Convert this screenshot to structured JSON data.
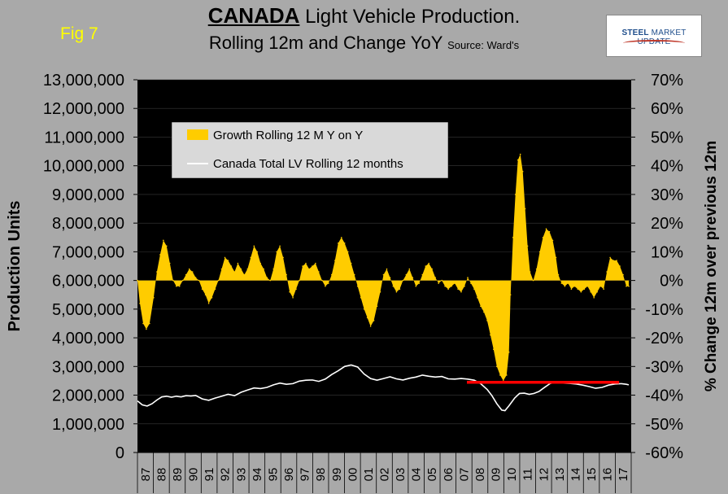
{
  "header": {
    "fig_label": "Fig 7",
    "title_bold": "CANADA",
    "title_rest": " Light Vehicle Production.",
    "subtitle": "Rolling 12m and Change YoY",
    "source": "Source: Ward's"
  },
  "logo": {
    "brand": "STEEL",
    "rest": "MARKET UPDATE"
  },
  "colors": {
    "growth": "#ffcc00",
    "total_line": "#ffffff",
    "reference_line": "#ff0000",
    "plot_bg": "#000000",
    "page_bg": "#a9a9a9"
  },
  "chart_data": {
    "type": "area",
    "xlabel": "",
    "ylabel_left": "Production Units",
    "ylabel_right": "% Change 12m over previous 12m",
    "y_left_lim": [
      0,
      13000000
    ],
    "y_left_ticks": [
      "0",
      "1,000,000",
      "2,000,000",
      "3,000,000",
      "4,000,000",
      "5,000,000",
      "6,000,000",
      "7,000,000",
      "8,000,000",
      "9,000,000",
      "10,000,000",
      "11,000,000",
      "12,000,000",
      "13,000,000"
    ],
    "y_right_lim": [
      -60,
      70
    ],
    "y_right_ticks": [
      "-60%",
      "-50%",
      "-40%",
      "-30%",
      "-20%",
      "-10%",
      "0%",
      "10%",
      "20%",
      "30%",
      "40%",
      "50%",
      "60%",
      "70%"
    ],
    "x_ticks": [
      "87",
      "88",
      "89",
      "90",
      "91",
      "92",
      "93",
      "94",
      "95",
      "96",
      "97",
      "98",
      "99",
      "00",
      "01",
      "02",
      "03",
      "04",
      "05",
      "06",
      "07",
      "08",
      "09",
      "10",
      "11",
      "12",
      "13",
      "14",
      "15",
      "16",
      "17"
    ],
    "x_range": [
      1987,
      2017.5
    ],
    "legend": {
      "placement": "top-left",
      "growth_label": "Growth Rolling 12 M Y on Y",
      "total_label": "Canada Total LV Rolling 12 months"
    },
    "series": [
      {
        "name": "Growth Rolling 12 M Y on Y",
        "axis": "right",
        "points": [
          [
            1987.0,
            0
          ],
          [
            1987.15,
            -8
          ],
          [
            1987.35,
            -15
          ],
          [
            1987.55,
            -17
          ],
          [
            1987.75,
            -15
          ],
          [
            1988.0,
            -6
          ],
          [
            1988.2,
            3
          ],
          [
            1988.4,
            9
          ],
          [
            1988.6,
            14
          ],
          [
            1988.8,
            12
          ],
          [
            1989.0,
            6
          ],
          [
            1989.2,
            0
          ],
          [
            1989.4,
            -2
          ],
          [
            1989.6,
            -2
          ],
          [
            1989.8,
            0
          ],
          [
            1990.0,
            2
          ],
          [
            1990.2,
            4
          ],
          [
            1990.4,
            3
          ],
          [
            1990.6,
            1
          ],
          [
            1990.8,
            0
          ],
          [
            1991.0,
            -3
          ],
          [
            1991.2,
            -5
          ],
          [
            1991.4,
            -8
          ],
          [
            1991.6,
            -6
          ],
          [
            1991.8,
            -3
          ],
          [
            1992.0,
            0
          ],
          [
            1992.2,
            4
          ],
          [
            1992.4,
            8
          ],
          [
            1992.6,
            7
          ],
          [
            1992.8,
            5
          ],
          [
            1993.0,
            3
          ],
          [
            1993.2,
            6
          ],
          [
            1993.4,
            4
          ],
          [
            1993.6,
            2
          ],
          [
            1993.8,
            4
          ],
          [
            1994.0,
            8
          ],
          [
            1994.2,
            12
          ],
          [
            1994.4,
            10
          ],
          [
            1994.6,
            6
          ],
          [
            1994.8,
            4
          ],
          [
            1995.0,
            1
          ],
          [
            1995.2,
            0
          ],
          [
            1995.4,
            4
          ],
          [
            1995.6,
            10
          ],
          [
            1995.8,
            12
          ],
          [
            1996.0,
            8
          ],
          [
            1996.2,
            2
          ],
          [
            1996.4,
            -4
          ],
          [
            1996.6,
            -6
          ],
          [
            1996.8,
            -3
          ],
          [
            1997.0,
            0
          ],
          [
            1997.2,
            5
          ],
          [
            1997.4,
            6
          ],
          [
            1997.6,
            4
          ],
          [
            1997.8,
            5
          ],
          [
            1998.0,
            6
          ],
          [
            1998.2,
            3
          ],
          [
            1998.4,
            0
          ],
          [
            1998.6,
            -2
          ],
          [
            1998.8,
            -1
          ],
          [
            1999.0,
            2
          ],
          [
            1999.2,
            7
          ],
          [
            1999.4,
            13
          ],
          [
            1999.6,
            15
          ],
          [
            1999.8,
            13
          ],
          [
            2000.0,
            10
          ],
          [
            2000.2,
            6
          ],
          [
            2000.4,
            2
          ],
          [
            2000.6,
            -2
          ],
          [
            2000.8,
            -6
          ],
          [
            2001.0,
            -10
          ],
          [
            2001.2,
            -13
          ],
          [
            2001.4,
            -16
          ],
          [
            2001.6,
            -14
          ],
          [
            2001.8,
            -9
          ],
          [
            2002.0,
            -4
          ],
          [
            2002.2,
            2
          ],
          [
            2002.4,
            4
          ],
          [
            2002.6,
            1
          ],
          [
            2002.8,
            -2
          ],
          [
            2003.0,
            -4
          ],
          [
            2003.2,
            -3
          ],
          [
            2003.4,
            0
          ],
          [
            2003.6,
            2
          ],
          [
            2003.8,
            4
          ],
          [
            2004.0,
            1
          ],
          [
            2004.2,
            -2
          ],
          [
            2004.4,
            -1
          ],
          [
            2004.6,
            2
          ],
          [
            2004.8,
            5
          ],
          [
            2005.0,
            6
          ],
          [
            2005.2,
            4
          ],
          [
            2005.4,
            1
          ],
          [
            2005.6,
            -1
          ],
          [
            2005.8,
            0
          ],
          [
            2006.0,
            -2
          ],
          [
            2006.2,
            -3
          ],
          [
            2006.4,
            -2
          ],
          [
            2006.6,
            -1
          ],
          [
            2006.8,
            -3
          ],
          [
            2007.0,
            -4
          ],
          [
            2007.2,
            -2
          ],
          [
            2007.4,
            1
          ],
          [
            2007.6,
            -1
          ],
          [
            2007.8,
            -3
          ],
          [
            2008.0,
            -6
          ],
          [
            2008.2,
            -9
          ],
          [
            2008.4,
            -11
          ],
          [
            2008.6,
            -14
          ],
          [
            2008.8,
            -19
          ],
          [
            2009.0,
            -24
          ],
          [
            2009.2,
            -30
          ],
          [
            2009.4,
            -33
          ],
          [
            2009.6,
            -35
          ],
          [
            2009.8,
            -33
          ],
          [
            2009.95,
            -25
          ],
          [
            2010.05,
            -5
          ],
          [
            2010.2,
            15
          ],
          [
            2010.35,
            30
          ],
          [
            2010.5,
            42
          ],
          [
            2010.65,
            44
          ],
          [
            2010.8,
            38
          ],
          [
            2010.95,
            25
          ],
          [
            2011.1,
            12
          ],
          [
            2011.25,
            3
          ],
          [
            2011.45,
            0
          ],
          [
            2011.65,
            4
          ],
          [
            2011.85,
            10
          ],
          [
            2012.05,
            15
          ],
          [
            2012.25,
            18
          ],
          [
            2012.45,
            17
          ],
          [
            2012.65,
            14
          ],
          [
            2012.85,
            8
          ],
          [
            2013.0,
            2
          ],
          [
            2013.2,
            -1
          ],
          [
            2013.4,
            -2
          ],
          [
            2013.6,
            -1
          ],
          [
            2013.8,
            -3
          ],
          [
            2014.0,
            -2
          ],
          [
            2014.2,
            -3
          ],
          [
            2014.4,
            -4
          ],
          [
            2014.6,
            -3
          ],
          [
            2014.8,
            -2
          ],
          [
            2015.0,
            -4
          ],
          [
            2015.2,
            -6
          ],
          [
            2015.4,
            -4
          ],
          [
            2015.6,
            -2
          ],
          [
            2015.8,
            -3
          ],
          [
            2016.0,
            3
          ],
          [
            2016.2,
            8
          ],
          [
            2016.4,
            7
          ],
          [
            2016.6,
            7
          ],
          [
            2016.8,
            5
          ],
          [
            2017.0,
            2
          ],
          [
            2017.2,
            -2
          ],
          [
            2017.35,
            -2
          ]
        ]
      },
      {
        "name": "Canada Total LV Rolling 12 months",
        "axis": "left",
        "points": [
          [
            1987.0,
            1800000
          ],
          [
            1987.3,
            1660000
          ],
          [
            1987.6,
            1620000
          ],
          [
            1987.9,
            1700000
          ],
          [
            1988.2,
            1830000
          ],
          [
            1988.5,
            1940000
          ],
          [
            1988.8,
            1960000
          ],
          [
            1989.1,
            1930000
          ],
          [
            1989.4,
            1960000
          ],
          [
            1989.7,
            1940000
          ],
          [
            1990.0,
            1980000
          ],
          [
            1990.3,
            1970000
          ],
          [
            1990.6,
            1990000
          ],
          [
            1991.0,
            1870000
          ],
          [
            1991.4,
            1820000
          ],
          [
            1991.8,
            1900000
          ],
          [
            1992.2,
            1960000
          ],
          [
            1992.6,
            2030000
          ],
          [
            1993.0,
            1980000
          ],
          [
            1993.4,
            2100000
          ],
          [
            1993.8,
            2180000
          ],
          [
            1994.2,
            2250000
          ],
          [
            1994.6,
            2230000
          ],
          [
            1995.0,
            2270000
          ],
          [
            1995.4,
            2360000
          ],
          [
            1995.8,
            2420000
          ],
          [
            1996.2,
            2380000
          ],
          [
            1996.6,
            2400000
          ],
          [
            1997.0,
            2490000
          ],
          [
            1997.4,
            2520000
          ],
          [
            1997.8,
            2530000
          ],
          [
            1998.2,
            2480000
          ],
          [
            1998.6,
            2560000
          ],
          [
            1999.0,
            2720000
          ],
          [
            1999.4,
            2850000
          ],
          [
            1999.8,
            3000000
          ],
          [
            2000.2,
            3050000
          ],
          [
            2000.6,
            2980000
          ],
          [
            2001.0,
            2740000
          ],
          [
            2001.4,
            2580000
          ],
          [
            2001.8,
            2520000
          ],
          [
            2002.2,
            2580000
          ],
          [
            2002.6,
            2640000
          ],
          [
            2003.0,
            2570000
          ],
          [
            2003.4,
            2530000
          ],
          [
            2003.8,
            2590000
          ],
          [
            2004.2,
            2630000
          ],
          [
            2004.6,
            2700000
          ],
          [
            2005.0,
            2660000
          ],
          [
            2005.4,
            2630000
          ],
          [
            2005.8,
            2650000
          ],
          [
            2006.2,
            2570000
          ],
          [
            2006.6,
            2560000
          ],
          [
            2007.0,
            2580000
          ],
          [
            2007.4,
            2560000
          ],
          [
            2007.8,
            2520000
          ],
          [
            2008.2,
            2400000
          ],
          [
            2008.6,
            2200000
          ],
          [
            2008.9,
            1980000
          ],
          [
            2009.2,
            1700000
          ],
          [
            2009.5,
            1480000
          ],
          [
            2009.7,
            1460000
          ],
          [
            2009.95,
            1630000
          ],
          [
            2010.3,
            1900000
          ],
          [
            2010.6,
            2060000
          ],
          [
            2010.9,
            2070000
          ],
          [
            2011.2,
            2030000
          ],
          [
            2011.5,
            2060000
          ],
          [
            2011.8,
            2130000
          ],
          [
            2012.1,
            2250000
          ],
          [
            2012.5,
            2410000
          ],
          [
            2012.9,
            2450000
          ],
          [
            2013.3,
            2420000
          ],
          [
            2013.7,
            2410000
          ],
          [
            2014.1,
            2390000
          ],
          [
            2014.5,
            2350000
          ],
          [
            2014.9,
            2300000
          ],
          [
            2015.3,
            2240000
          ],
          [
            2015.7,
            2270000
          ],
          [
            2016.1,
            2350000
          ],
          [
            2016.5,
            2390000
          ],
          [
            2016.9,
            2400000
          ],
          [
            2017.2,
            2380000
          ],
          [
            2017.35,
            2360000
          ]
        ]
      },
      {
        "name": "",
        "axis": "left",
        "kind": "reference",
        "points": [
          [
            2007.35,
            2450000
          ],
          [
            2016.75,
            2450000
          ]
        ]
      }
    ]
  }
}
